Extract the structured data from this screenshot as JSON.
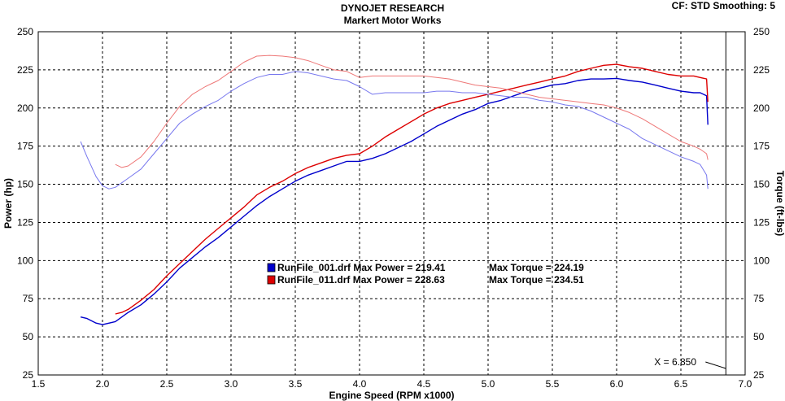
{
  "header": {
    "title_line1": "DYNOJET RESEARCH",
    "title_line2": "Markert Motor Works",
    "cf_text": "CF: STD  Smoothing: 5"
  },
  "chart_data": {
    "type": "line",
    "xlabel": "Engine Speed (RPM x1000)",
    "ylabel_left": "Power (hp)",
    "ylabel_right": "Torque (ft-lbs)",
    "xlim": [
      1.5,
      7.0
    ],
    "ylim": [
      25,
      250
    ],
    "x_ticks": [
      "1.5",
      "2.0",
      "2.5",
      "3.0",
      "3.5",
      "4.0",
      "4.5",
      "5.0",
      "5.5",
      "6.0",
      "6.5",
      "7.0"
    ],
    "y_ticks": [
      "25",
      "50",
      "75",
      "100",
      "125",
      "150",
      "175",
      "200",
      "225",
      "250"
    ],
    "grid": true,
    "cursor": {
      "x": 6.85,
      "label": "X = 6.850"
    },
    "legend": [
      {
        "file": "RunFile_001.drf",
        "power_text": "Max Power = 219.41",
        "torque_text": "Max Torque = 224.19",
        "color": "#0000cc"
      },
      {
        "file": "RunFile_011.drf",
        "power_text": "Max Power = 228.63",
        "torque_text": "Max Torque = 234.51",
        "color": "#dd0000"
      }
    ],
    "series": [
      {
        "name": "RunFile_001.drf",
        "kind": "power",
        "color": "#0000cc",
        "x": [
          1.83,
          1.88,
          1.95,
          2.0,
          2.1,
          2.2,
          2.3,
          2.4,
          2.5,
          2.6,
          2.7,
          2.8,
          2.9,
          3.0,
          3.1,
          3.2,
          3.3,
          3.4,
          3.5,
          3.6,
          3.7,
          3.8,
          3.9,
          4.0,
          4.1,
          4.2,
          4.3,
          4.4,
          4.5,
          4.6,
          4.7,
          4.8,
          4.9,
          5.0,
          5.1,
          5.2,
          5.3,
          5.4,
          5.5,
          5.6,
          5.7,
          5.8,
          5.9,
          6.0,
          6.1,
          6.2,
          6.3,
          6.4,
          6.5,
          6.6,
          6.65,
          6.7,
          6.71
        ],
        "y": [
          63,
          62,
          59,
          58,
          60,
          66,
          71,
          78,
          86,
          95,
          102,
          109,
          115,
          122,
          129,
          136,
          142,
          147,
          152,
          156,
          159,
          162,
          165,
          165,
          167,
          170,
          174,
          178,
          183,
          188,
          192,
          196,
          199,
          203,
          205,
          208,
          211,
          213,
          215,
          216,
          218,
          219,
          219,
          219.4,
          218,
          217,
          215,
          213,
          211,
          210,
          210,
          208,
          189
        ]
      },
      {
        "name": "RunFile_011.drf",
        "kind": "power",
        "color": "#dd0000",
        "x": [
          2.1,
          2.15,
          2.2,
          2.3,
          2.4,
          2.5,
          2.6,
          2.7,
          2.8,
          2.9,
          3.0,
          3.1,
          3.2,
          3.3,
          3.4,
          3.5,
          3.6,
          3.7,
          3.8,
          3.9,
          4.0,
          4.1,
          4.2,
          4.3,
          4.4,
          4.5,
          4.6,
          4.7,
          4.8,
          4.9,
          5.0,
          5.1,
          5.2,
          5.3,
          5.4,
          5.5,
          5.6,
          5.7,
          5.8,
          5.9,
          6.0,
          6.1,
          6.2,
          6.3,
          6.4,
          6.5,
          6.6,
          6.65,
          6.7,
          6.71
        ],
        "y": [
          65,
          66,
          68,
          74,
          81,
          90,
          98,
          106,
          114,
          121,
          128,
          135,
          143,
          148,
          152,
          157,
          161,
          164,
          167,
          169,
          170,
          175,
          181,
          186,
          191,
          196,
          200,
          203,
          205,
          207,
          209,
          211,
          213,
          215,
          217,
          219,
          221,
          224,
          226,
          228,
          228.6,
          227,
          226,
          224,
          222,
          221,
          221,
          220,
          219,
          204
        ]
      },
      {
        "name": "RunFile_001.drf",
        "kind": "torque",
        "color": "#7777ee",
        "x": [
          1.83,
          1.88,
          1.95,
          2.0,
          2.05,
          2.1,
          2.2,
          2.3,
          2.4,
          2.5,
          2.6,
          2.7,
          2.8,
          2.9,
          3.0,
          3.1,
          3.2,
          3.3,
          3.4,
          3.5,
          3.6,
          3.7,
          3.8,
          3.9,
          4.0,
          4.1,
          4.2,
          4.3,
          4.4,
          4.5,
          4.6,
          4.7,
          4.8,
          4.9,
          5.0,
          5.1,
          5.2,
          5.3,
          5.4,
          5.5,
          5.6,
          5.7,
          5.8,
          5.9,
          6.0,
          6.1,
          6.2,
          6.3,
          6.4,
          6.5,
          6.6,
          6.65,
          6.7,
          6.71
        ],
        "y": [
          178,
          168,
          155,
          149,
          147,
          148,
          154,
          160,
          170,
          180,
          190,
          196,
          201,
          205,
          211,
          216,
          220,
          222,
          222,
          224,
          223,
          221,
          219,
          218,
          214,
          209,
          210,
          210,
          210,
          210,
          211,
          211,
          210,
          210,
          209,
          208,
          207,
          207,
          205,
          204,
          202,
          201,
          198,
          194,
          190,
          186,
          180,
          176,
          172,
          168,
          165,
          163,
          156,
          147
        ]
      },
      {
        "name": "RunFile_011.drf",
        "kind": "torque",
        "color": "#ee7777",
        "x": [
          2.1,
          2.15,
          2.2,
          2.3,
          2.4,
          2.5,
          2.6,
          2.7,
          2.8,
          2.9,
          3.0,
          3.1,
          3.2,
          3.3,
          3.4,
          3.5,
          3.6,
          3.7,
          3.8,
          3.9,
          4.0,
          4.1,
          4.2,
          4.3,
          4.4,
          4.5,
          4.6,
          4.7,
          4.8,
          4.9,
          5.0,
          5.1,
          5.2,
          5.3,
          5.4,
          5.5,
          5.6,
          5.7,
          5.8,
          5.9,
          6.0,
          6.1,
          6.2,
          6.3,
          6.4,
          6.5,
          6.6,
          6.65,
          6.7,
          6.71
        ],
        "y": [
          163,
          161,
          162,
          168,
          178,
          190,
          201,
          209,
          214,
          218,
          224,
          230,
          234,
          234.5,
          234,
          233,
          231,
          228,
          225,
          224,
          220,
          221,
          221,
          221,
          221,
          221,
          220,
          219,
          217,
          215,
          214,
          213,
          211,
          209,
          207,
          206,
          205,
          204,
          203,
          202,
          200,
          197,
          193,
          188,
          183,
          178,
          175,
          173,
          170,
          166
        ]
      }
    ]
  }
}
